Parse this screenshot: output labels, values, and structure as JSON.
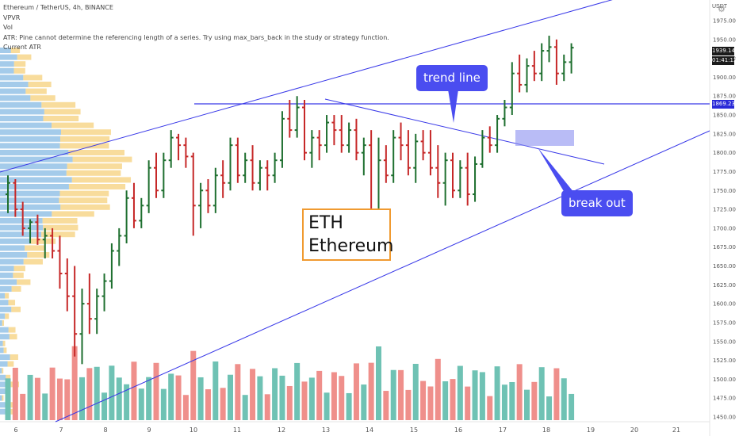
{
  "legend": {
    "symbol": "Ethereum / TetherUS, 4h, BINANCE",
    "vpvr": "VPVR",
    "vol": "Vol",
    "atr_error": "ATR: Pine cannot determine the referencing length of a series. Try using max_bars_back in the study or strategy function.",
    "current_atr": "Current ATR"
  },
  "annotations": {
    "trend_line": "trend line",
    "break_out": "break out",
    "eth_line1": "ETH",
    "eth_line2": "Ethereum"
  },
  "axis": {
    "currency": "USDT",
    "price_tag": "1939.14",
    "countdown": "01:41:12",
    "line_tag": "1869.23"
  },
  "colors": {
    "up": "#1e6f2f",
    "down": "#c62828",
    "vol_up": "#6fc2b4",
    "vol_down": "#ef8f8b",
    "trend": "#3838e8",
    "callout": "#4a4df0",
    "eth_border": "#f09a30",
    "vpvr_blue": "#5aa0d8",
    "vpvr_orange": "#f3c04a"
  },
  "chart_data": {
    "type": "candlestick-ohlc",
    "timeframe": "4h",
    "y_ticks": [
      1975,
      1950,
      1925,
      1900,
      1875,
      1850,
      1825,
      1800,
      1775,
      1750,
      1725,
      1700,
      1675,
      1650,
      1625,
      1600,
      1575,
      1550,
      1525,
      1500,
      1475,
      1450
    ],
    "ylim": [
      1445,
      1990
    ],
    "x_ticks": [
      "6",
      "7",
      "8",
      "9",
      "10",
      "11",
      "12",
      "13",
      "14",
      "15",
      "16",
      "17",
      "18",
      "19",
      "20",
      "21"
    ],
    "horizontal_line": 1869.23,
    "last_price": 1939.14,
    "bars": [
      {
        "o": 1745,
        "h": 1770,
        "l": 1720,
        "c": 1760
      },
      {
        "o": 1760,
        "h": 1765,
        "l": 1715,
        "c": 1725
      },
      {
        "o": 1725,
        "h": 1735,
        "l": 1690,
        "c": 1700
      },
      {
        "o": 1700,
        "h": 1712,
        "l": 1680,
        "c": 1708
      },
      {
        "o": 1708,
        "h": 1718,
        "l": 1678,
        "c": 1685
      },
      {
        "o": 1685,
        "h": 1700,
        "l": 1660,
        "c": 1690
      },
      {
        "o": 1690,
        "h": 1700,
        "l": 1660,
        "c": 1670
      },
      {
        "o": 1670,
        "h": 1690,
        "l": 1620,
        "c": 1640
      },
      {
        "o": 1640,
        "h": 1660,
        "l": 1590,
        "c": 1610
      },
      {
        "o": 1610,
        "h": 1650,
        "l": 1530,
        "c": 1560
      },
      {
        "o": 1560,
        "h": 1620,
        "l": 1520,
        "c": 1600
      },
      {
        "o": 1600,
        "h": 1640,
        "l": 1560,
        "c": 1580
      },
      {
        "o": 1580,
        "h": 1620,
        "l": 1560,
        "c": 1610
      },
      {
        "o": 1610,
        "h": 1640,
        "l": 1590,
        "c": 1630
      },
      {
        "o": 1630,
        "h": 1680,
        "l": 1620,
        "c": 1670
      },
      {
        "o": 1670,
        "h": 1700,
        "l": 1650,
        "c": 1690
      },
      {
        "o": 1690,
        "h": 1750,
        "l": 1680,
        "c": 1740
      },
      {
        "o": 1740,
        "h": 1760,
        "l": 1700,
        "c": 1710
      },
      {
        "o": 1710,
        "h": 1740,
        "l": 1700,
        "c": 1730
      },
      {
        "o": 1730,
        "h": 1790,
        "l": 1720,
        "c": 1780
      },
      {
        "o": 1780,
        "h": 1800,
        "l": 1740,
        "c": 1750
      },
      {
        "o": 1750,
        "h": 1800,
        "l": 1740,
        "c": 1790
      },
      {
        "o": 1790,
        "h": 1830,
        "l": 1780,
        "c": 1820
      },
      {
        "o": 1820,
        "h": 1825,
        "l": 1790,
        "c": 1810
      },
      {
        "o": 1810,
        "h": 1820,
        "l": 1780,
        "c": 1795
      },
      {
        "o": 1795,
        "h": 1800,
        "l": 1690,
        "c": 1730
      },
      {
        "o": 1730,
        "h": 1760,
        "l": 1700,
        "c": 1750
      },
      {
        "o": 1750,
        "h": 1765,
        "l": 1720,
        "c": 1730
      },
      {
        "o": 1730,
        "h": 1780,
        "l": 1720,
        "c": 1770
      },
      {
        "o": 1770,
        "h": 1790,
        "l": 1740,
        "c": 1760
      },
      {
        "o": 1760,
        "h": 1820,
        "l": 1750,
        "c": 1810
      },
      {
        "o": 1810,
        "h": 1820,
        "l": 1760,
        "c": 1770
      },
      {
        "o": 1770,
        "h": 1800,
        "l": 1760,
        "c": 1790
      },
      {
        "o": 1790,
        "h": 1810,
        "l": 1750,
        "c": 1760
      },
      {
        "o": 1760,
        "h": 1790,
        "l": 1750,
        "c": 1780
      },
      {
        "o": 1780,
        "h": 1790,
        "l": 1750,
        "c": 1770
      },
      {
        "o": 1770,
        "h": 1800,
        "l": 1760,
        "c": 1790
      },
      {
        "o": 1790,
        "h": 1855,
        "l": 1780,
        "c": 1845
      },
      {
        "o": 1845,
        "h": 1870,
        "l": 1820,
        "c": 1830
      },
      {
        "o": 1830,
        "h": 1875,
        "l": 1820,
        "c": 1860
      },
      {
        "o": 1860,
        "h": 1870,
        "l": 1790,
        "c": 1800
      },
      {
        "o": 1800,
        "h": 1830,
        "l": 1780,
        "c": 1820
      },
      {
        "o": 1820,
        "h": 1830,
        "l": 1790,
        "c": 1810
      },
      {
        "o": 1810,
        "h": 1850,
        "l": 1800,
        "c": 1840
      },
      {
        "o": 1840,
        "h": 1850,
        "l": 1810,
        "c": 1830
      },
      {
        "o": 1830,
        "h": 1850,
        "l": 1800,
        "c": 1810
      },
      {
        "o": 1810,
        "h": 1840,
        "l": 1800,
        "c": 1830
      },
      {
        "o": 1830,
        "h": 1845,
        "l": 1790,
        "c": 1800
      },
      {
        "o": 1800,
        "h": 1820,
        "l": 1770,
        "c": 1810
      },
      {
        "o": 1810,
        "h": 1830,
        "l": 1700,
        "c": 1720
      },
      {
        "o": 1720,
        "h": 1820,
        "l": 1700,
        "c": 1790
      },
      {
        "o": 1790,
        "h": 1810,
        "l": 1760,
        "c": 1770
      },
      {
        "o": 1770,
        "h": 1830,
        "l": 1760,
        "c": 1820
      },
      {
        "o": 1820,
        "h": 1840,
        "l": 1790,
        "c": 1810
      },
      {
        "o": 1810,
        "h": 1830,
        "l": 1770,
        "c": 1780
      },
      {
        "o": 1780,
        "h": 1825,
        "l": 1760,
        "c": 1815
      },
      {
        "o": 1815,
        "h": 1830,
        "l": 1790,
        "c": 1800
      },
      {
        "o": 1800,
        "h": 1830,
        "l": 1770,
        "c": 1780
      },
      {
        "o": 1780,
        "h": 1810,
        "l": 1740,
        "c": 1760
      },
      {
        "o": 1760,
        "h": 1800,
        "l": 1730,
        "c": 1790
      },
      {
        "o": 1790,
        "h": 1800,
        "l": 1740,
        "c": 1750
      },
      {
        "o": 1750,
        "h": 1790,
        "l": 1740,
        "c": 1780
      },
      {
        "o": 1780,
        "h": 1800,
        "l": 1730,
        "c": 1745
      },
      {
        "o": 1745,
        "h": 1795,
        "l": 1735,
        "c": 1785
      },
      {
        "o": 1785,
        "h": 1830,
        "l": 1780,
        "c": 1820
      },
      {
        "o": 1820,
        "h": 1835,
        "l": 1800,
        "c": 1810
      },
      {
        "o": 1810,
        "h": 1850,
        "l": 1800,
        "c": 1845
      },
      {
        "o": 1845,
        "h": 1870,
        "l": 1835,
        "c": 1860
      },
      {
        "o": 1860,
        "h": 1920,
        "l": 1850,
        "c": 1905
      },
      {
        "o": 1905,
        "h": 1930,
        "l": 1880,
        "c": 1890
      },
      {
        "o": 1890,
        "h": 1925,
        "l": 1880,
        "c": 1915
      },
      {
        "o": 1915,
        "h": 1935,
        "l": 1895,
        "c": 1905
      },
      {
        "o": 1905,
        "h": 1945,
        "l": 1895,
        "c": 1935
      },
      {
        "o": 1935,
        "h": 1955,
        "l": 1920,
        "c": 1940
      },
      {
        "o": 1940,
        "h": 1950,
        "l": 1890,
        "c": 1905
      },
      {
        "o": 1905,
        "h": 1930,
        "l": 1895,
        "c": 1920
      },
      {
        "o": 1920,
        "h": 1945,
        "l": 1905,
        "c": 1939.14
      }
    ],
    "volume_scale": 100
  }
}
